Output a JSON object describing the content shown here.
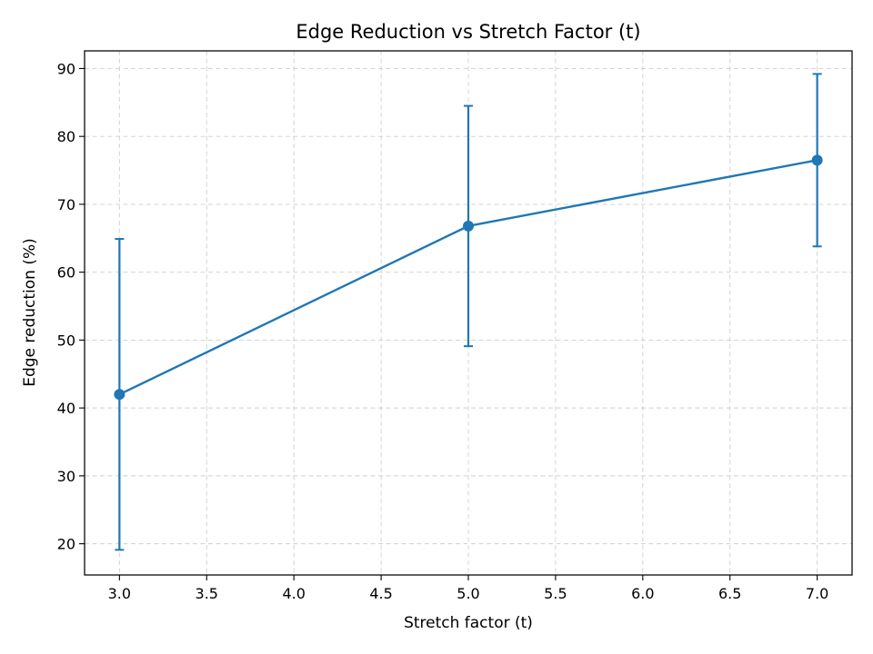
{
  "chart_data": {
    "type": "line",
    "title": "Edge Reduction vs Stretch Factor (t)",
    "xlabel": "Stretch factor (t)",
    "ylabel": "Edge reduction (%)",
    "xlim": [
      2.8,
      7.2
    ],
    "ylim": [
      15.4,
      92.6
    ],
    "xticks": [
      "3.0",
      "3.5",
      "4.0",
      "4.5",
      "5.0",
      "5.5",
      "6.0",
      "6.5",
      "7.0"
    ],
    "yticks": [
      "20",
      "30",
      "40",
      "50",
      "60",
      "70",
      "80",
      "90"
    ],
    "grid": true,
    "grid_style": "dashed",
    "legend": "none",
    "series": [
      {
        "color": "#1f77b4",
        "x": [
          3.0,
          5.0,
          7.0
        ],
        "y": [
          42.0,
          66.8,
          76.5
        ],
        "error": [
          22.9,
          17.7,
          12.7
        ]
      }
    ]
  }
}
